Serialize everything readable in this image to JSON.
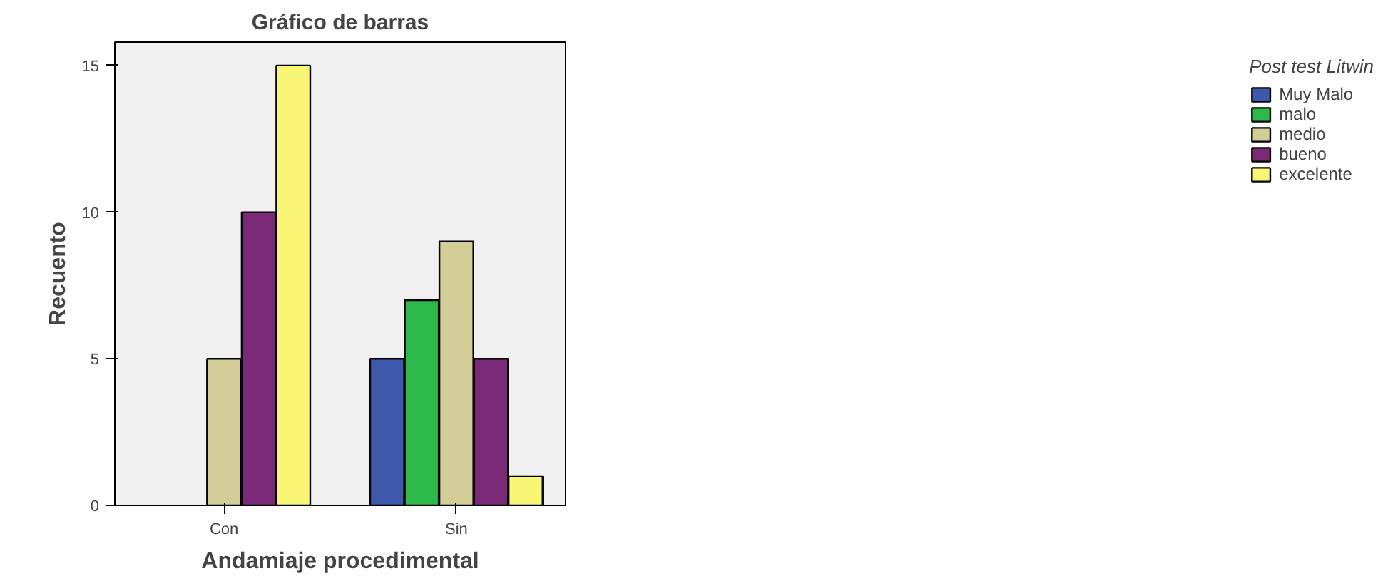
{
  "chart_data": {
    "type": "bar",
    "title": "Gráfico de barras",
    "xlabel": "Andamiaje procedimental",
    "ylabel": "Recuento",
    "legend_title": "Post test Litwin",
    "categories": [
      "Con",
      "Sin"
    ],
    "series": [
      {
        "name": "Muy Malo",
        "color": "#3e58ac",
        "values": [
          null,
          5
        ]
      },
      {
        "name": "malo",
        "color": "#2db84a",
        "values": [
          null,
          7
        ]
      },
      {
        "name": "medio",
        "color": "#d3ce97",
        "values": [
          5,
          9
        ]
      },
      {
        "name": "bueno",
        "color": "#7b2a78",
        "values": [
          10,
          5
        ]
      },
      {
        "name": "excelente",
        "color": "#f9f575",
        "values": [
          15,
          1
        ]
      }
    ],
    "ylim": [
      0,
      15.8
    ],
    "yticks": [
      0,
      5,
      10,
      15
    ],
    "grid": false,
    "legend": "right"
  }
}
